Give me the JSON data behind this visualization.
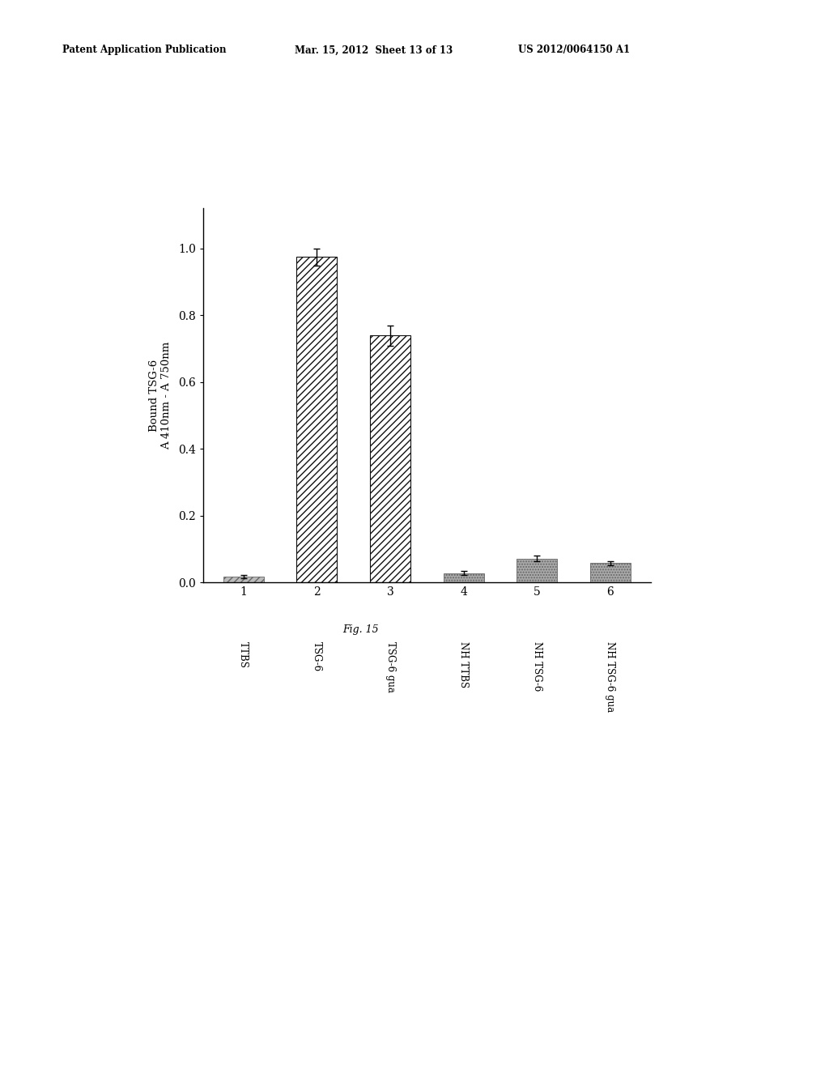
{
  "x_labels": [
    "1",
    "2",
    "3",
    "4",
    "5",
    "6"
  ],
  "x_sublabels": [
    "TTBS",
    "TSG-6",
    "TSG-6 gua",
    "NH TTBS",
    "NH TSG-6",
    "NH TSG-6 gua"
  ],
  "values": [
    0.018,
    0.975,
    0.74,
    0.028,
    0.072,
    0.058
  ],
  "errors": [
    0.005,
    0.025,
    0.03,
    0.006,
    0.008,
    0.007
  ],
  "ylabel_line1": "Bound TSG-6",
  "ylabel_line2": "A 410nm - A 750nm",
  "figure_caption": "Fig. 15",
  "header_left": "Patent Application Publication",
  "header_mid": "Mar. 15, 2012  Sheet 13 of 13",
  "header_right": "US 2012/0064150 A1",
  "ylim": [
    0.0,
    1.12
  ],
  "yticks": [
    0.0,
    0.2,
    0.4,
    0.6,
    0.8,
    1.0
  ],
  "background_color": "#ffffff"
}
